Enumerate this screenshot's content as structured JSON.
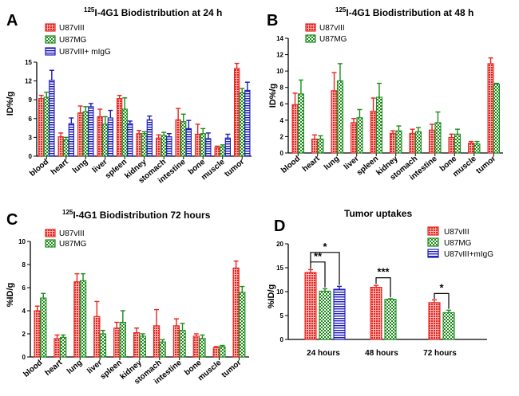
{
  "colors": {
    "red": "#e8231f",
    "green": "#1a8c1a",
    "blue": "#1a1ab8"
  },
  "chart_data": [
    {
      "panel": "A",
      "type": "bar",
      "title_sup": "125",
      "title": "I-4G1 Biodistribution at 24 h",
      "ylabel": "ID%/g",
      "ylim": [
        0,
        15
      ],
      "yticks": [
        "0",
        "3",
        "6",
        "9",
        "12",
        "15"
      ],
      "categories": [
        "blood",
        "heart",
        "lung",
        "liver",
        "spleen",
        "kidney",
        "stomach",
        "intestine",
        "bone",
        "muscle",
        "tumor"
      ],
      "series": [
        {
          "name": "U87vIII",
          "values": [
            9.2,
            3.1,
            6.9,
            6.3,
            9.2,
            3.6,
            2.9,
            5.8,
            3.5,
            1.4,
            14.0
          ],
          "errors": [
            0.5,
            0.6,
            1.1,
            1.2,
            0.5,
            0.5,
            0.5,
            1.8,
            1.6,
            0.2,
            0.8
          ]
        },
        {
          "name": "U87MG",
          "values": [
            9.4,
            2.6,
            7.1,
            5.1,
            7.5,
            3.6,
            3.3,
            5.5,
            3.6,
            1.5,
            10.1
          ],
          "errors": [
            0.8,
            0.4,
            0.8,
            1.2,
            1.8,
            0.3,
            0.5,
            1.2,
            0.8,
            0.3,
            0.7
          ]
        },
        {
          "name": "U87vIII+ mIgG",
          "values": [
            12.1,
            5.2,
            7.9,
            6.1,
            5.2,
            5.8,
            3.1,
            4.4,
            2.8,
            2.9,
            10.5
          ],
          "errors": [
            1.6,
            0.9,
            0.5,
            1.2,
            0.4,
            0.6,
            0.5,
            1.3,
            0.9,
            0.6,
            1.3
          ]
        }
      ]
    },
    {
      "panel": "B",
      "type": "bar",
      "title_sup": "125",
      "title": "I-4G1 Biodistribution at 48 h",
      "ylabel": "ID%/g",
      "ylim": [
        0,
        14
      ],
      "yticks": [
        "0",
        "2",
        "4",
        "6",
        "8",
        "10",
        "12",
        "14"
      ],
      "categories": [
        "blood",
        "heart",
        "lung",
        "liver",
        "spleen",
        "kidney",
        "stomach",
        "intestine",
        "bone",
        "muscle",
        "tumor"
      ],
      "series": [
        {
          "name": "U87vIII",
          "values": [
            5.9,
            1.7,
            7.6,
            3.7,
            5.1,
            2.4,
            2.4,
            2.8,
            1.9,
            1.2,
            10.9
          ],
          "errors": [
            1.4,
            0.5,
            2.2,
            0.5,
            1.6,
            0.3,
            0.5,
            0.7,
            0.4,
            0.2,
            0.7
          ]
        },
        {
          "name": "U87MG",
          "values": [
            7.2,
            1.7,
            8.8,
            4.3,
            6.8,
            2.7,
            2.6,
            3.7,
            2.3,
            1.1,
            8.4
          ],
          "errors": [
            1.7,
            0.4,
            2.1,
            1.0,
            1.7,
            0.6,
            0.5,
            1.3,
            0.6,
            0.3,
            0.1
          ]
        }
      ]
    },
    {
      "panel": "C",
      "type": "bar",
      "title_sup": "125",
      "title": "I-4G1 Biodistribution 72 hours",
      "ylabel": "%ID/g",
      "ylim": [
        0,
        10
      ],
      "yticks": [
        "0",
        "2",
        "4",
        "6",
        "8",
        "10"
      ],
      "categories": [
        "blood",
        "heart",
        "lung",
        "liver",
        "spleen",
        "kidney",
        "stomach",
        "intestine",
        "bone",
        "muscle",
        "tumor"
      ],
      "series": [
        {
          "name": "U87vIII",
          "values": [
            4.0,
            1.6,
            6.5,
            3.5,
            2.5,
            2.1,
            2.7,
            2.7,
            1.8,
            0.8,
            7.7
          ],
          "errors": [
            0.4,
            0.3,
            0.7,
            1.3,
            0.5,
            0.4,
            1.4,
            0.6,
            0.2,
            0.1,
            0.6
          ]
        },
        {
          "name": "U87MG",
          "values": [
            5.1,
            1.7,
            6.6,
            2.0,
            3.0,
            1.8,
            1.3,
            2.3,
            1.6,
            0.9,
            5.6
          ],
          "errors": [
            0.4,
            0.2,
            0.6,
            0.3,
            1.0,
            0.2,
            0.2,
            0.6,
            0.3,
            0.1,
            0.5
          ]
        }
      ]
    },
    {
      "panel": "D",
      "type": "bar",
      "title": "Tumor uptakes",
      "ylabel": "%ID/g",
      "ylim": [
        0,
        20
      ],
      "yticks": [
        "0",
        "5",
        "10",
        "15",
        "20"
      ],
      "categories": [
        "24 hours",
        "48 hours",
        "72 hours"
      ],
      "series": [
        {
          "name": "U87vIII",
          "values": [
            14.0,
            10.9,
            7.7
          ],
          "errors": [
            0.6,
            0.4,
            0.6
          ]
        },
        {
          "name": "U87MG",
          "values": [
            10.1,
            8.4,
            5.6
          ],
          "errors": [
            0.5,
            0.1,
            0.5
          ]
        },
        {
          "name": "U87vIII+mIgG",
          "values": [
            10.5,
            null,
            null
          ],
          "errors": [
            0.6,
            null,
            null
          ]
        }
      ],
      "significance": [
        {
          "group": "24 hours",
          "label": "**"
        },
        {
          "group": "24 hours",
          "label": "*"
        },
        {
          "group": "48 hours",
          "label": "***"
        },
        {
          "group": "72 hours",
          "label": "*"
        }
      ]
    }
  ]
}
